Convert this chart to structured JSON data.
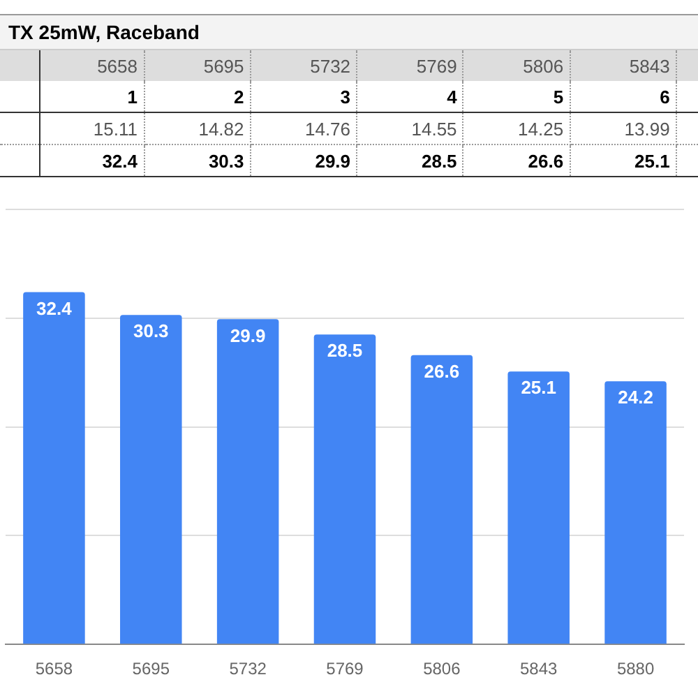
{
  "chart_data": {
    "type": "bar",
    "title": "TX 25mW, Raceband",
    "categories": [
      "5658",
      "5695",
      "5732",
      "5769",
      "5806",
      "5843",
      "5880"
    ],
    "values": [
      32.4,
      30.3,
      29.9,
      28.5,
      26.6,
      25.1,
      24.2
    ],
    "color": "#4285f4",
    "ylim": [
      0,
      40
    ],
    "yticks": [
      {
        "value": 0,
        "label": null
      },
      {
        "value": 10,
        "label": null
      },
      {
        "value": 20,
        "label": null
      },
      {
        "value": 30,
        "label": null
      },
      {
        "value": 40,
        "label": null
      }
    ],
    "tick_labels": "x",
    "grid": "y",
    "data_labels": true,
    "annotations": [
      "1",
      "2",
      "3",
      "4",
      "5",
      "6",
      "15.11",
      "14.82",
      "14.76",
      "14.55",
      "14.25",
      "13.99",
      "32.4",
      "30.3",
      "29.9",
      "28.5",
      "26.6",
      "25.1"
    ]
  }
}
